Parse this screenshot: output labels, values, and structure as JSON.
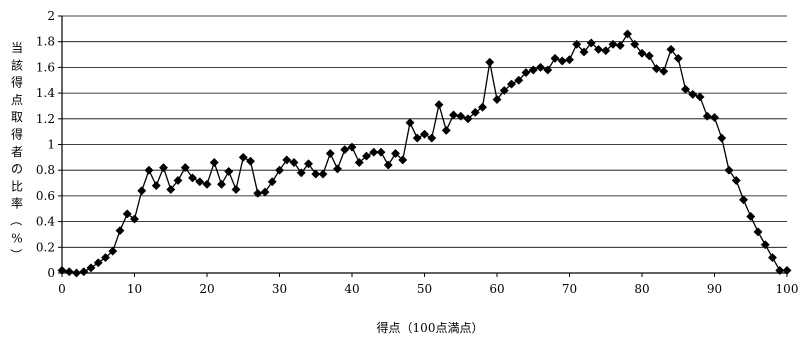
{
  "chart_data": {
    "type": "line",
    "xlabel": "得点（100点満点）",
    "ylabel": "当該得点取得者の比率（%）",
    "xlim": [
      0,
      100
    ],
    "ylim": [
      0,
      2
    ],
    "x_ticks": [
      0,
      10,
      20,
      30,
      40,
      50,
      60,
      70,
      80,
      90,
      100
    ],
    "y_ticks": [
      0,
      0.2,
      0.4,
      0.6,
      0.8,
      1,
      1.2,
      1.4,
      1.6,
      1.8,
      2
    ],
    "x_tick_labels": [
      "0",
      "10",
      "20",
      "30",
      "40",
      "50",
      "60",
      "70",
      "80",
      "90",
      "100"
    ],
    "y_tick_labels": [
      "0",
      "0.2",
      "0.4",
      "0.6",
      "0.8",
      "1",
      "1.2",
      "1.4",
      "1.6",
      "1.8",
      "2"
    ],
    "grid": "horizontal",
    "marker": "diamond",
    "line_color": "#000000",
    "x": [
      0,
      1,
      2,
      3,
      4,
      5,
      6,
      7,
      8,
      9,
      10,
      11,
      12,
      13,
      14,
      15,
      16,
      17,
      18,
      19,
      20,
      21,
      22,
      23,
      24,
      25,
      26,
      27,
      28,
      29,
      30,
      31,
      32,
      33,
      34,
      35,
      36,
      37,
      38,
      39,
      40,
      41,
      42,
      43,
      44,
      45,
      46,
      47,
      48,
      49,
      50,
      51,
      52,
      53,
      54,
      55,
      56,
      57,
      58,
      59,
      60,
      61,
      62,
      63,
      64,
      65,
      66,
      67,
      68,
      69,
      70,
      71,
      72,
      73,
      74,
      75,
      76,
      77,
      78,
      79,
      80,
      81,
      82,
      83,
      84,
      85,
      86,
      87,
      88,
      89,
      90,
      91,
      92,
      93,
      94,
      95,
      96,
      97,
      98,
      99,
      100
    ],
    "y": [
      0.02,
      0.01,
      0,
      0.01,
      0.04,
      0.08,
      0.12,
      0.17,
      0.33,
      0.46,
      0.42,
      0.64,
      0.8,
      0.68,
      0.82,
      0.65,
      0.72,
      0.82,
      0.74,
      0.71,
      0.69,
      0.86,
      0.69,
      0.79,
      0.65,
      0.9,
      0.87,
      0.62,
      0.63,
      0.71,
      0.8,
      0.88,
      0.86,
      0.78,
      0.85,
      0.77,
      0.77,
      0.93,
      0.81,
      0.96,
      0.98,
      0.86,
      0.91,
      0.94,
      0.94,
      0.84,
      0.93,
      0.88,
      1.17,
      1.05,
      1.08,
      1.05,
      1.31,
      1.11,
      1.23,
      1.22,
      1.2,
      1.25,
      1.29,
      1.64,
      1.35,
      1.42,
      1.47,
      1.5,
      1.56,
      1.58,
      1.6,
      1.58,
      1.67,
      1.65,
      1.66,
      1.78,
      1.72,
      1.79,
      1.74,
      1.73,
      1.78,
      1.77,
      1.86,
      1.78,
      1.71,
      1.69,
      1.59,
      1.57,
      1.74,
      1.67,
      1.43,
      1.39,
      1.37,
      1.22,
      1.21,
      1.05,
      0.8,
      0.72,
      0.57,
      0.44,
      0.32,
      0.22,
      0.12,
      0.02,
      0.02
    ]
  }
}
